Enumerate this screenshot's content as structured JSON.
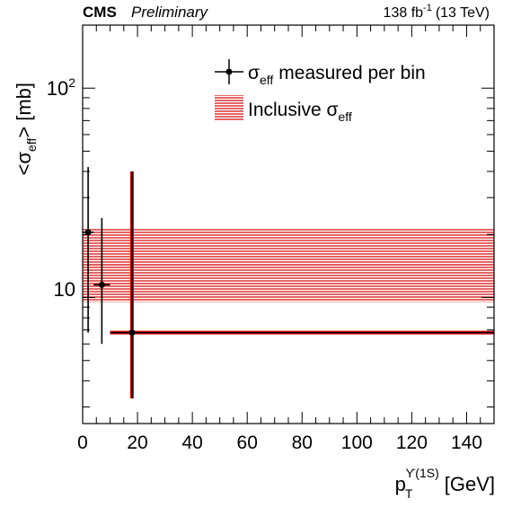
{
  "header": {
    "experiment": "CMS",
    "status": "Preliminary",
    "lumi_value": "138 fb",
    "lumi_exp": "-1",
    "energy": "(13 TeV)"
  },
  "axes": {
    "y_main": "<σ",
    "y_sub": "eff",
    "y_tail": "> [mb]",
    "x_main": "p",
    "x_sub": "T",
    "x_sup": "ϒ(1S)",
    "x_tail": "[GeV]",
    "y_tick_10": "10",
    "y_tick_100_base": "10",
    "y_tick_100_exp": "2"
  },
  "legend": {
    "entry1_sigma": "σ",
    "entry1_sub": "eff",
    "entry1_tail": "measured per bin",
    "entry2_head": "Inclusive σ",
    "entry2_sub": "eff"
  },
  "chart_data": {
    "type": "scatter",
    "x_label": "p_T^{ϒ(1S)} [GeV]",
    "y_label": "<σ_eff> [mb]",
    "x_range": [
      0,
      150
    ],
    "y_range": [
      2.5,
      200
    ],
    "y_scale": "log",
    "x_ticks": [
      0,
      20,
      40,
      60,
      80,
      100,
      120,
      140
    ],
    "legend_position": "top-right",
    "colors": {
      "points": "#000000",
      "band": "#d40000",
      "bar_outline": "#d40000"
    },
    "series": [
      {
        "name": "σ_eff measured per bin",
        "points": [
          {
            "x": 2,
            "xlo": 0,
            "xhi": 4,
            "y": 20.5,
            "ylo": 6.8,
            "yhi": 42
          },
          {
            "x": 7,
            "xlo": 4,
            "xhi": 10,
            "y": 11.5,
            "ylo": 6.0,
            "yhi": 24
          },
          {
            "x": 18,
            "xlo": 10,
            "xhi": 150,
            "y": 6.8,
            "ylo": 3.3,
            "yhi": 40
          }
        ]
      }
    ],
    "inclusive_band": {
      "name": "Inclusive σ_eff",
      "x": [
        0,
        150
      ],
      "ylo": 9.5,
      "yhi": 21.5
    }
  }
}
